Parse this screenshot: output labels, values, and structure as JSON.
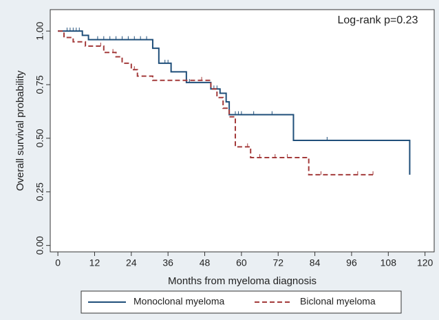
{
  "chart_data": {
    "type": "step",
    "xlabel": "Months from myeloma diagnosis",
    "ylabel": "Overall survival probability",
    "annotation": "Log-rank p=0.23",
    "xlim": [
      -2.5,
      123
    ],
    "ylim": [
      -0.03,
      1.1
    ],
    "xticks": [
      0,
      12,
      24,
      36,
      48,
      60,
      72,
      84,
      96,
      108,
      120
    ],
    "yticks": [
      {
        "value": 0,
        "label": "0.00"
      },
      {
        "value": 0.25,
        "label": "0.25"
      },
      {
        "value": 0.5,
        "label": "0.50"
      },
      {
        "value": 0.75,
        "label": "0.75"
      },
      {
        "value": 1,
        "label": "1.00"
      }
    ],
    "series": [
      {
        "name": "Monoclonal myeloma",
        "color": "#1f4e79",
        "dash": false,
        "x": [
          0,
          8,
          10,
          31,
          33,
          37,
          42,
          50,
          53,
          55,
          56,
          77,
          115
        ],
        "values": [
          1.0,
          0.98,
          0.96,
          0.92,
          0.85,
          0.81,
          0.76,
          0.73,
          0.71,
          0.67,
          0.61,
          0.49,
          0.33
        ],
        "censored": [
          3,
          4,
          5,
          6,
          7,
          13,
          15,
          17,
          19,
          21,
          23,
          25,
          27,
          29,
          35,
          36,
          43,
          51,
          52,
          58,
          59,
          60,
          64,
          70,
          88
        ]
      },
      {
        "name": "Biclonal myeloma",
        "color": "#a33a3a",
        "dash": true,
        "x": [
          0,
          2,
          5,
          9,
          15,
          19,
          21,
          24,
          26,
          31,
          50,
          52,
          54,
          56,
          58,
          63,
          82,
          103
        ],
        "values": [
          1.0,
          0.97,
          0.95,
          0.93,
          0.9,
          0.88,
          0.85,
          0.82,
          0.79,
          0.77,
          0.73,
          0.69,
          0.64,
          0.6,
          0.46,
          0.41,
          0.33,
          0.33
        ],
        "censored": [
          14,
          18,
          25,
          47,
          62,
          66,
          71,
          75,
          86,
          98,
          103
        ]
      }
    ]
  }
}
